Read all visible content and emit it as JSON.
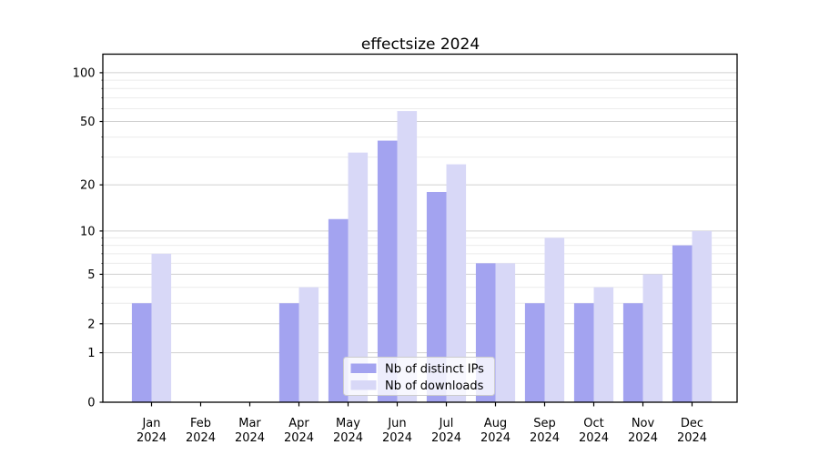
{
  "chart_data": {
    "type": "bar",
    "title": "effectsize 2024",
    "categories": [
      "Jan",
      "Feb",
      "Mar",
      "Apr",
      "May",
      "Jun",
      "Jul",
      "Aug",
      "Sep",
      "Oct",
      "Nov",
      "Dec"
    ],
    "x_year_suffix": "2024",
    "series": [
      {
        "name": "Nb of distinct IPs",
        "key": "distinct-ips",
        "color": "#a3a3f0",
        "values": [
          3,
          0,
          0,
          3,
          12,
          38,
          18,
          6,
          3,
          3,
          3,
          8
        ]
      },
      {
        "name": "Nb of downloads",
        "key": "downloads",
        "color": "#d8d8f7",
        "values": [
          7,
          0,
          0,
          4,
          32,
          58,
          27,
          6,
          9,
          4,
          5,
          10
        ]
      }
    ],
    "yscale": "log1p",
    "ylim": [
      0,
      130
    ],
    "yticks": {
      "major": [
        100,
        50,
        20,
        10,
        5,
        2,
        1,
        0
      ],
      "minor": [
        90,
        80,
        70,
        60,
        40,
        30,
        9,
        8,
        7,
        6,
        4,
        3
      ]
    },
    "grid": {
      "major_color": "#d0d0d0",
      "minor_color": "#ececec"
    },
    "axis_color": "#000000",
    "background_color": "#ffffff",
    "legend_position": "lower center"
  }
}
